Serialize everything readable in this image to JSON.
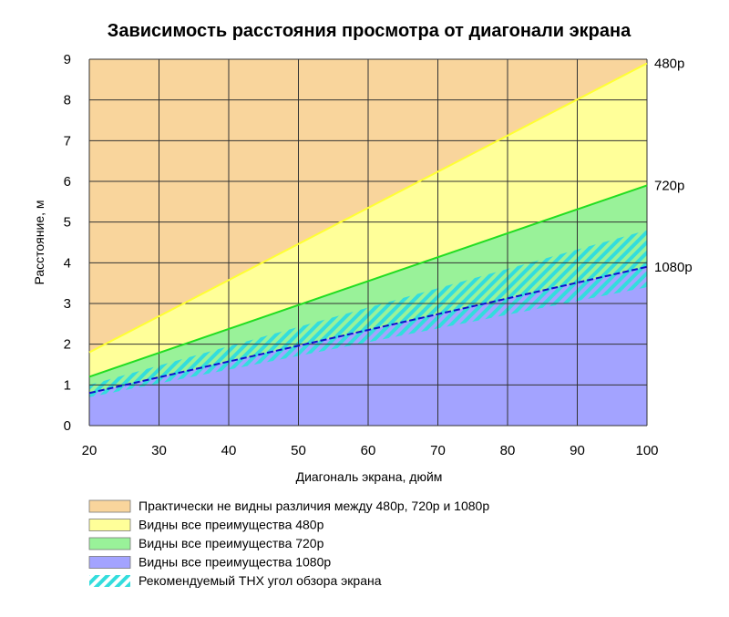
{
  "chart_data": {
    "type": "area",
    "title": "Зависимость расстояния просмотра от диагонали экрана",
    "xlabel": "Диагональ экрана, дюйм",
    "ylabel": "Расстояние, м",
    "xlim": [
      20,
      100
    ],
    "ylim": [
      0,
      9
    ],
    "x_ticks": [
      "20",
      "30",
      "40",
      "50",
      "60",
      "70",
      "80",
      "90",
      "100"
    ],
    "y_ticks": [
      "0",
      "1",
      "2",
      "3",
      "4",
      "5",
      "6",
      "7",
      "8",
      "9"
    ],
    "grid": true,
    "x": [
      20,
      100
    ],
    "series": [
      {
        "name": "480p",
        "values": [
          1.8,
          8.9
        ],
        "color": "#ffff33"
      },
      {
        "name": "720p",
        "values": [
          1.2,
          5.9
        ],
        "color": "#22dd22"
      },
      {
        "name": "1080p",
        "values": [
          0.8,
          3.9
        ],
        "color": "#1010cc"
      }
    ],
    "thx_band": {
      "x": [
        20,
        100
      ],
      "lower": [
        0.7,
        3.4
      ],
      "upper": [
        1.0,
        4.8
      ],
      "color": "#33dddd"
    },
    "legend": [
      {
        "label": "Практически не видны различия между 480p, 720p и 1080p",
        "color": "#f9d59c"
      },
      {
        "label": "Видны все преимущества 480p",
        "color": "#ffff99"
      },
      {
        "label": "Видны все преимущества 720p",
        "color": "#99f299"
      },
      {
        "label": "Видны все преимущества 1080p",
        "color": "#a3a3ff"
      },
      {
        "label": "Рекомендуемый ТНХ угол обзора экрана",
        "color": "#33dddd"
      }
    ],
    "legend_position": "bottom-left"
  },
  "colors": {
    "above_480p": "#f9d59c",
    "zone_480p": "#ffff99",
    "zone_720p": "#99f299",
    "zone_1080p": "#a3a3ff",
    "grid": "#333333"
  }
}
